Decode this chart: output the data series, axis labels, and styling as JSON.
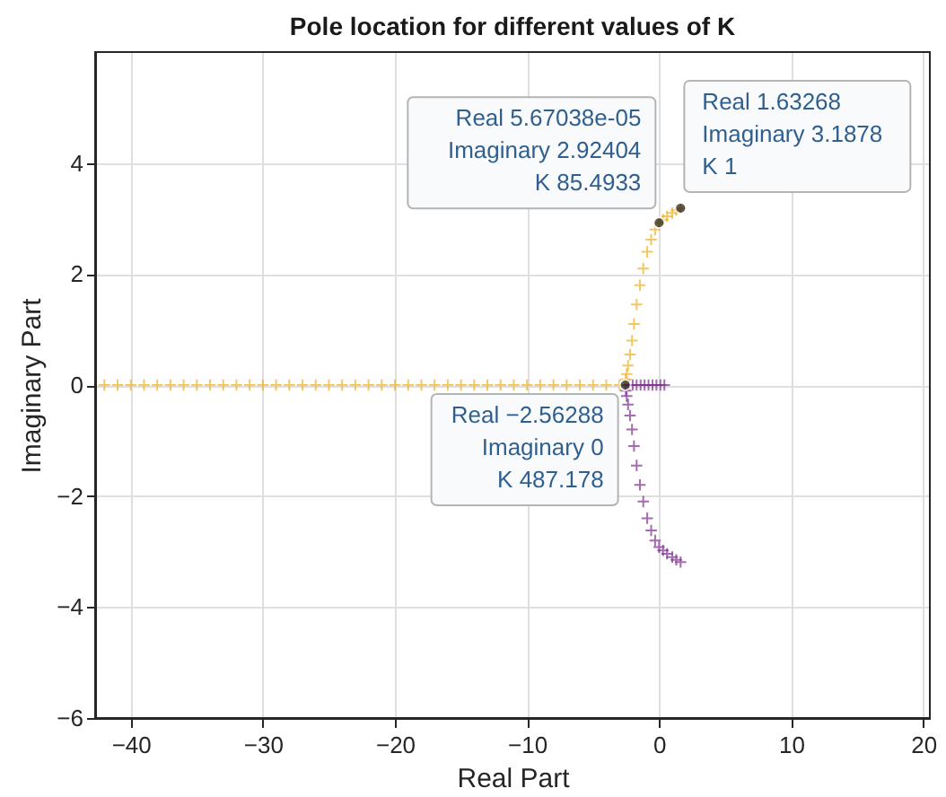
{
  "chart_data": {
    "type": "scatter",
    "title": "Pole location for different values of K",
    "xlabel": "Real Part",
    "ylabel": "Imaginary Part",
    "xlim": [
      -42.7,
      20.5
    ],
    "xticks": [
      -40,
      -30,
      -20,
      -10,
      0,
      10,
      20
    ],
    "ylim": [
      -6,
      6
    ],
    "yticks": [
      -6,
      -4,
      -2,
      0,
      2,
      4
    ],
    "grid": true,
    "legend": false,
    "marker": "cross",
    "series": [
      {
        "color": "#edb120",
        "x": [
          1.63268,
          1.3,
          1.0,
          0.6,
          0.3,
          5.67038e-05,
          -0.3,
          -0.6,
          -0.9,
          -1.2,
          -1.45,
          -1.7,
          -1.9,
          -2.05,
          -2.2,
          -2.35,
          -2.45,
          -2.52,
          -2.56288,
          -3,
          -4,
          -5,
          -6,
          -7,
          -8,
          -9,
          -10,
          -11,
          -12,
          -13,
          -14,
          -15,
          -16,
          -17,
          -18,
          -19,
          -20,
          -21,
          -22,
          -23,
          -24,
          -25,
          -26,
          -27,
          -28,
          -29,
          -30,
          -31,
          -32,
          -33,
          -34,
          -35,
          -36,
          -37,
          -38,
          -39,
          -40,
          -41,
          -42
        ],
        "values": [
          3.1878,
          3.15,
          3.1,
          3.04,
          2.98,
          2.92404,
          2.8,
          2.62,
          2.4,
          2.1,
          1.8,
          1.45,
          1.1,
          0.8,
          0.55,
          0.35,
          0.2,
          0.1,
          0,
          0,
          0,
          0,
          0,
          0,
          0,
          0,
          0,
          0,
          0,
          0,
          0,
          0,
          0,
          0,
          0,
          0,
          0,
          0,
          0,
          0,
          0,
          0,
          0,
          0,
          0,
          0,
          0,
          0,
          0,
          0,
          0,
          0,
          0,
          0,
          0,
          0,
          0,
          0,
          0
        ]
      },
      {
        "color": "#7e2f8e",
        "x": [
          1.63,
          1.3,
          1.0,
          0.6,
          0.3,
          0,
          -0.3,
          -0.6,
          -0.9,
          -1.2,
          -1.45,
          -1.7,
          -1.9,
          -2.05,
          -2.2,
          -2.35,
          -2.45,
          -2.52,
          -2.3,
          -2.0,
          -1.7,
          -1.4,
          -1.1,
          -0.8,
          -0.5,
          -0.2,
          0.1,
          0.4
        ],
        "values": [
          -3.19,
          -3.15,
          -3.1,
          -3.04,
          -2.98,
          -2.92,
          -2.8,
          -2.62,
          -2.4,
          -2.1,
          -1.8,
          -1.45,
          -1.1,
          -0.8,
          -0.55,
          -0.35,
          -0.2,
          -0.1,
          0,
          0,
          0,
          0,
          0,
          0,
          0,
          0,
          0,
          0
        ]
      }
    ],
    "annotations": [
      {
        "text": "Real 1.63268\nImaginary 3.1878\nK 1",
        "x": 1.63268,
        "y": 3.1878
      },
      {
        "text": "Real 5.67038e-05\nImaginary 2.92404\nK 85.4933",
        "x": 5.67038e-05,
        "y": 2.92404
      },
      {
        "text": "Real −2.56288\nImaginary 0\nK 487.178",
        "x": -2.56288,
        "y": 0
      }
    ]
  }
}
